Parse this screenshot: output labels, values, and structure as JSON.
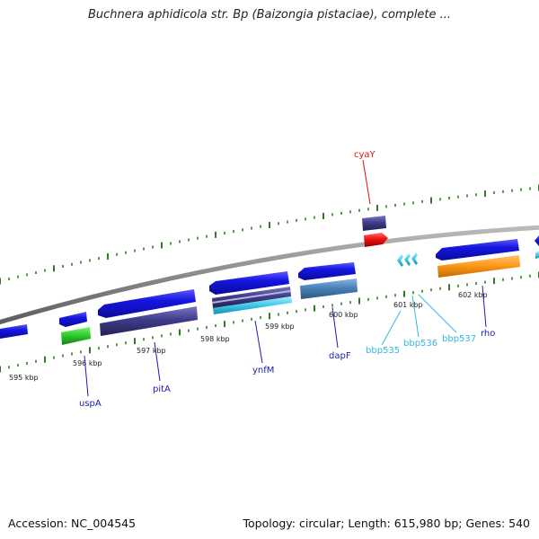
{
  "title": "Buchnera aphidicola str. Bp (Baizongia pistaciae), complete ...",
  "footer": {
    "accession": "Accession: NC_004545",
    "topology": "Topology: circular; Length: 615,980 bp; Genes: 540"
  },
  "colors": {
    "backbone": "#8a8a8a",
    "tick": "#2e7d1e",
    "gene_blue": "#1515e0",
    "gene_navy": "#3f3d8a",
    "gene_red": "#ee1111",
    "gene_green": "#2ecc2e",
    "gene_orange": "#ff9a1a",
    "gene_steel": "#4a82b8",
    "gene_cyan": "#3cc8e8",
    "label_red": "#dd1111",
    "label_navy": "#1c1caa",
    "label_cyan": "#33b8dd"
  },
  "scale": {
    "unit": "kbp",
    "ticks": [
      {
        "kbp": 595,
        "label": "595 kbp"
      },
      {
        "kbp": 596,
        "label": "596 kbp"
      },
      {
        "kbp": 597,
        "label": "597 kbp"
      },
      {
        "kbp": 598,
        "label": "598 kbp"
      },
      {
        "kbp": 599,
        "label": "599 kbp"
      },
      {
        "kbp": 600,
        "label": "600 kbp"
      },
      {
        "kbp": 601,
        "label": "601 kbp"
      },
      {
        "kbp": 602,
        "label": "602 kbp"
      }
    ]
  },
  "gene_labels": [
    {
      "id": "cyaY",
      "text": "cyaY",
      "color": "label_red"
    },
    {
      "id": "uspA",
      "text": "uspA",
      "color": "label_navy"
    },
    {
      "id": "pitA",
      "text": "pitA",
      "color": "label_navy"
    },
    {
      "id": "ynfM",
      "text": "ynfM",
      "color": "label_navy"
    },
    {
      "id": "dapF",
      "text": "dapF",
      "color": "label_navy"
    },
    {
      "id": "bbp535",
      "text": "bbp535",
      "color": "label_cyan"
    },
    {
      "id": "bbp536",
      "text": "bbp536",
      "color": "label_cyan"
    },
    {
      "id": "bbp537",
      "text": "bbp537",
      "color": "label_cyan"
    },
    {
      "id": "rho",
      "text": "rho",
      "color": "label_navy"
    }
  ]
}
